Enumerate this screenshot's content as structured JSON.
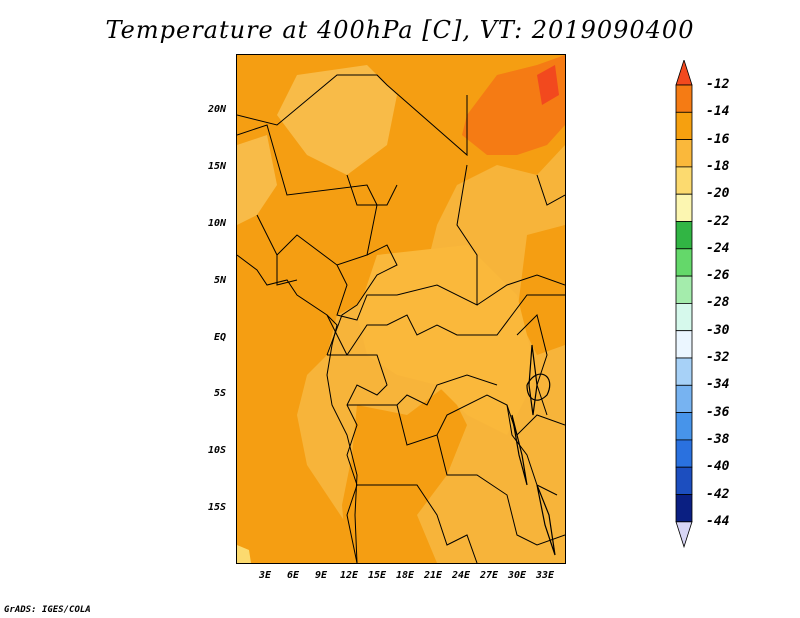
{
  "title": "Temperature at 400hPa [C], VT: 2019090400",
  "footer": "GrADS: IGES/COLA",
  "map": {
    "variable": "Temperature",
    "level": "400hPa",
    "unit": "C",
    "valid_time": "2019090400",
    "lat_labels": [
      "20N",
      "15N",
      "10N",
      "5N",
      "EQ",
      "5S",
      "10S",
      "15S"
    ],
    "lon_labels": [
      "3E",
      "6E",
      "9E",
      "12E",
      "15E",
      "18E",
      "21E",
      "24E",
      "27E",
      "30E",
      "33E"
    ]
  },
  "colorbar": {
    "labels": [
      "-12",
      "-14",
      "-16",
      "-18",
      "-20",
      "-22",
      "-24",
      "-26",
      "-28",
      "-30",
      "-32",
      "-34",
      "-36",
      "-38",
      "-40",
      "-42",
      "-44"
    ],
    "colors": [
      "#f2491e",
      "#f57b14",
      "#f6a00f",
      "#fab83b",
      "#fcda6f",
      "#fcf6b1",
      "#31b544",
      "#64d86a",
      "#a4ecac",
      "#d6f9ec",
      "#ebf6ff",
      "#a7d1f7",
      "#77b3f1",
      "#4794ea",
      "#2a71df",
      "#1c4ebf",
      "#0a1f82",
      "#d8d6f5"
    ]
  }
}
